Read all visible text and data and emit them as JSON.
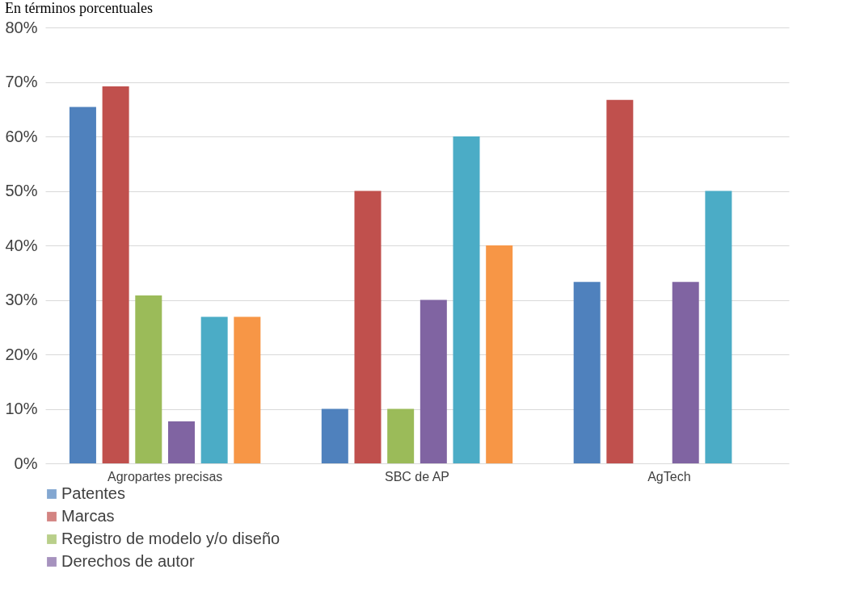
{
  "chart_data": {
    "type": "bar",
    "title": "En términos porcentuales",
    "categories": [
      "Agropartes precisas",
      "SBC de AP",
      "AgTech"
    ],
    "series": [
      {
        "name": "Patentes",
        "color": "#4f81bd",
        "values": [
          65.4,
          10,
          33.3
        ]
      },
      {
        "name": "Marcas",
        "color": "#c0504d",
        "values": [
          69.2,
          50,
          66.7
        ]
      },
      {
        "name": "Registro de modelo y/o diseño",
        "color": "#9bbb59",
        "values": [
          30.8,
          10,
          0
        ]
      },
      {
        "name": "Derechos de autor",
        "color": "#8064a2",
        "values": [
          7.7,
          30,
          33.3
        ]
      },
      {
        "color": "#4bacc6",
        "values": [
          26.9,
          60,
          50
        ]
      },
      {
        "color": "#f79646",
        "values": [
          26.9,
          40,
          0
        ]
      }
    ],
    "ylim": [
      0,
      80
    ],
    "yticks": [
      {
        "value": 0,
        "label": "0%"
      },
      {
        "value": 10,
        "label": "10%"
      },
      {
        "value": 20,
        "label": "20%"
      },
      {
        "value": 30,
        "label": "30%"
      },
      {
        "value": 40,
        "label": "40%"
      },
      {
        "value": 50,
        "label": "50%"
      },
      {
        "value": 60,
        "label": "60%"
      },
      {
        "value": 70,
        "label": "70%"
      },
      {
        "value": 80,
        "label": "80%"
      }
    ],
    "grid": "y",
    "legend": "bottom"
  }
}
